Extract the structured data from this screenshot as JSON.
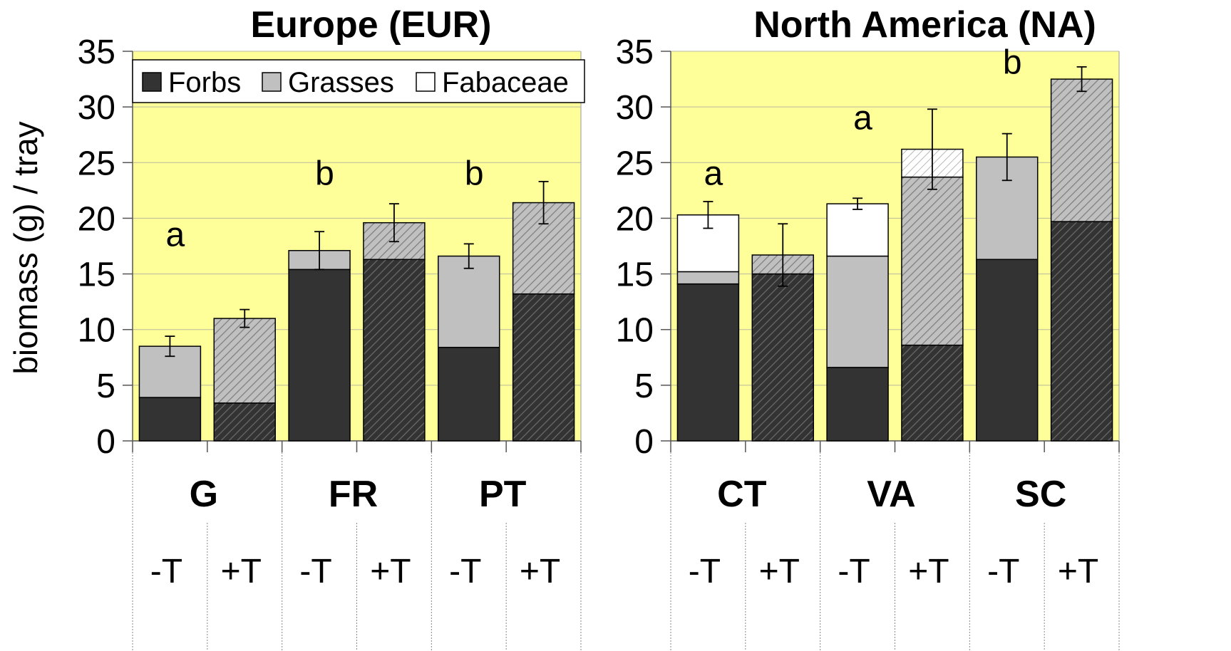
{
  "y_axis_label": "biomass (g) / tray",
  "legend": {
    "entries": [
      {
        "label": "Forbs",
        "color": "#333333"
      },
      {
        "label": "Grasses",
        "color": "#c0c0c0"
      },
      {
        "label": "Fabaceae",
        "color": "#ffffff"
      }
    ]
  },
  "colors": {
    "plot_background": "#ffff99",
    "forbs": "#333333",
    "grasses": "#c0c0c0",
    "fabaceae": "#ffffff"
  },
  "chart_data": [
    {
      "type": "bar",
      "stacked": true,
      "title": "Europe (EUR)",
      "ylabel": "biomass (g) / tray",
      "ylim": [
        0,
        35
      ],
      "yticks": [
        0,
        5,
        10,
        15,
        20,
        25,
        30,
        35
      ],
      "gridlines": true,
      "legend_position": "top",
      "groups": [
        "G",
        "FR",
        "PT"
      ],
      "categories": [
        "-T",
        "+T",
        "-T",
        "+T",
        "-T",
        "+T"
      ],
      "series": [
        {
          "name": "Forbs",
          "values": [
            3.9,
            3.4,
            15.4,
            16.3,
            8.4,
            13.2
          ]
        },
        {
          "name": "Grasses",
          "values": [
            4.6,
            7.6,
            1.7,
            3.3,
            8.2,
            8.2
          ]
        },
        {
          "name": "Fabaceae",
          "values": [
            0,
            0,
            0,
            0,
            0,
            0
          ]
        }
      ],
      "totals": [
        8.5,
        11.0,
        17.1,
        19.6,
        16.6,
        21.4
      ],
      "error": [
        0.9,
        0.8,
        1.7,
        1.7,
        1.1,
        1.9
      ],
      "significance_letters": [
        {
          "label": "a",
          "group": "G",
          "y": 17.5
        },
        {
          "label": "b",
          "group": "FR",
          "y": 23.0
        },
        {
          "label": "b",
          "group": "PT",
          "y": 23.0
        }
      ]
    },
    {
      "type": "bar",
      "stacked": true,
      "title": "North America (NA)",
      "ylim": [
        0,
        35
      ],
      "yticks": [
        0,
        5,
        10,
        15,
        20,
        25,
        30,
        35
      ],
      "gridlines": true,
      "groups": [
        "CT",
        "VA",
        "SC"
      ],
      "categories": [
        "-T",
        "+T",
        "-T",
        "+T",
        "-T",
        "+T"
      ],
      "series": [
        {
          "name": "Forbs",
          "values": [
            14.1,
            15.0,
            6.6,
            8.6,
            16.3,
            19.7
          ]
        },
        {
          "name": "Grasses",
          "values": [
            1.1,
            1.7,
            10.0,
            15.1,
            9.2,
            12.8
          ]
        },
        {
          "name": "Fabaceae",
          "values": [
            5.1,
            0,
            4.7,
            2.5,
            0,
            0
          ]
        }
      ],
      "totals": [
        20.3,
        16.7,
        21.3,
        26.2,
        25.5,
        32.5
      ],
      "error": [
        1.2,
        2.8,
        0.5,
        3.6,
        2.1,
        1.1
      ],
      "significance_letters": [
        {
          "label": "a",
          "group": "CT",
          "y": 23.0
        },
        {
          "label": "a",
          "group": "VA",
          "y": 28.0
        },
        {
          "label": "b",
          "group": "SC",
          "y": 33.0
        }
      ]
    }
  ]
}
